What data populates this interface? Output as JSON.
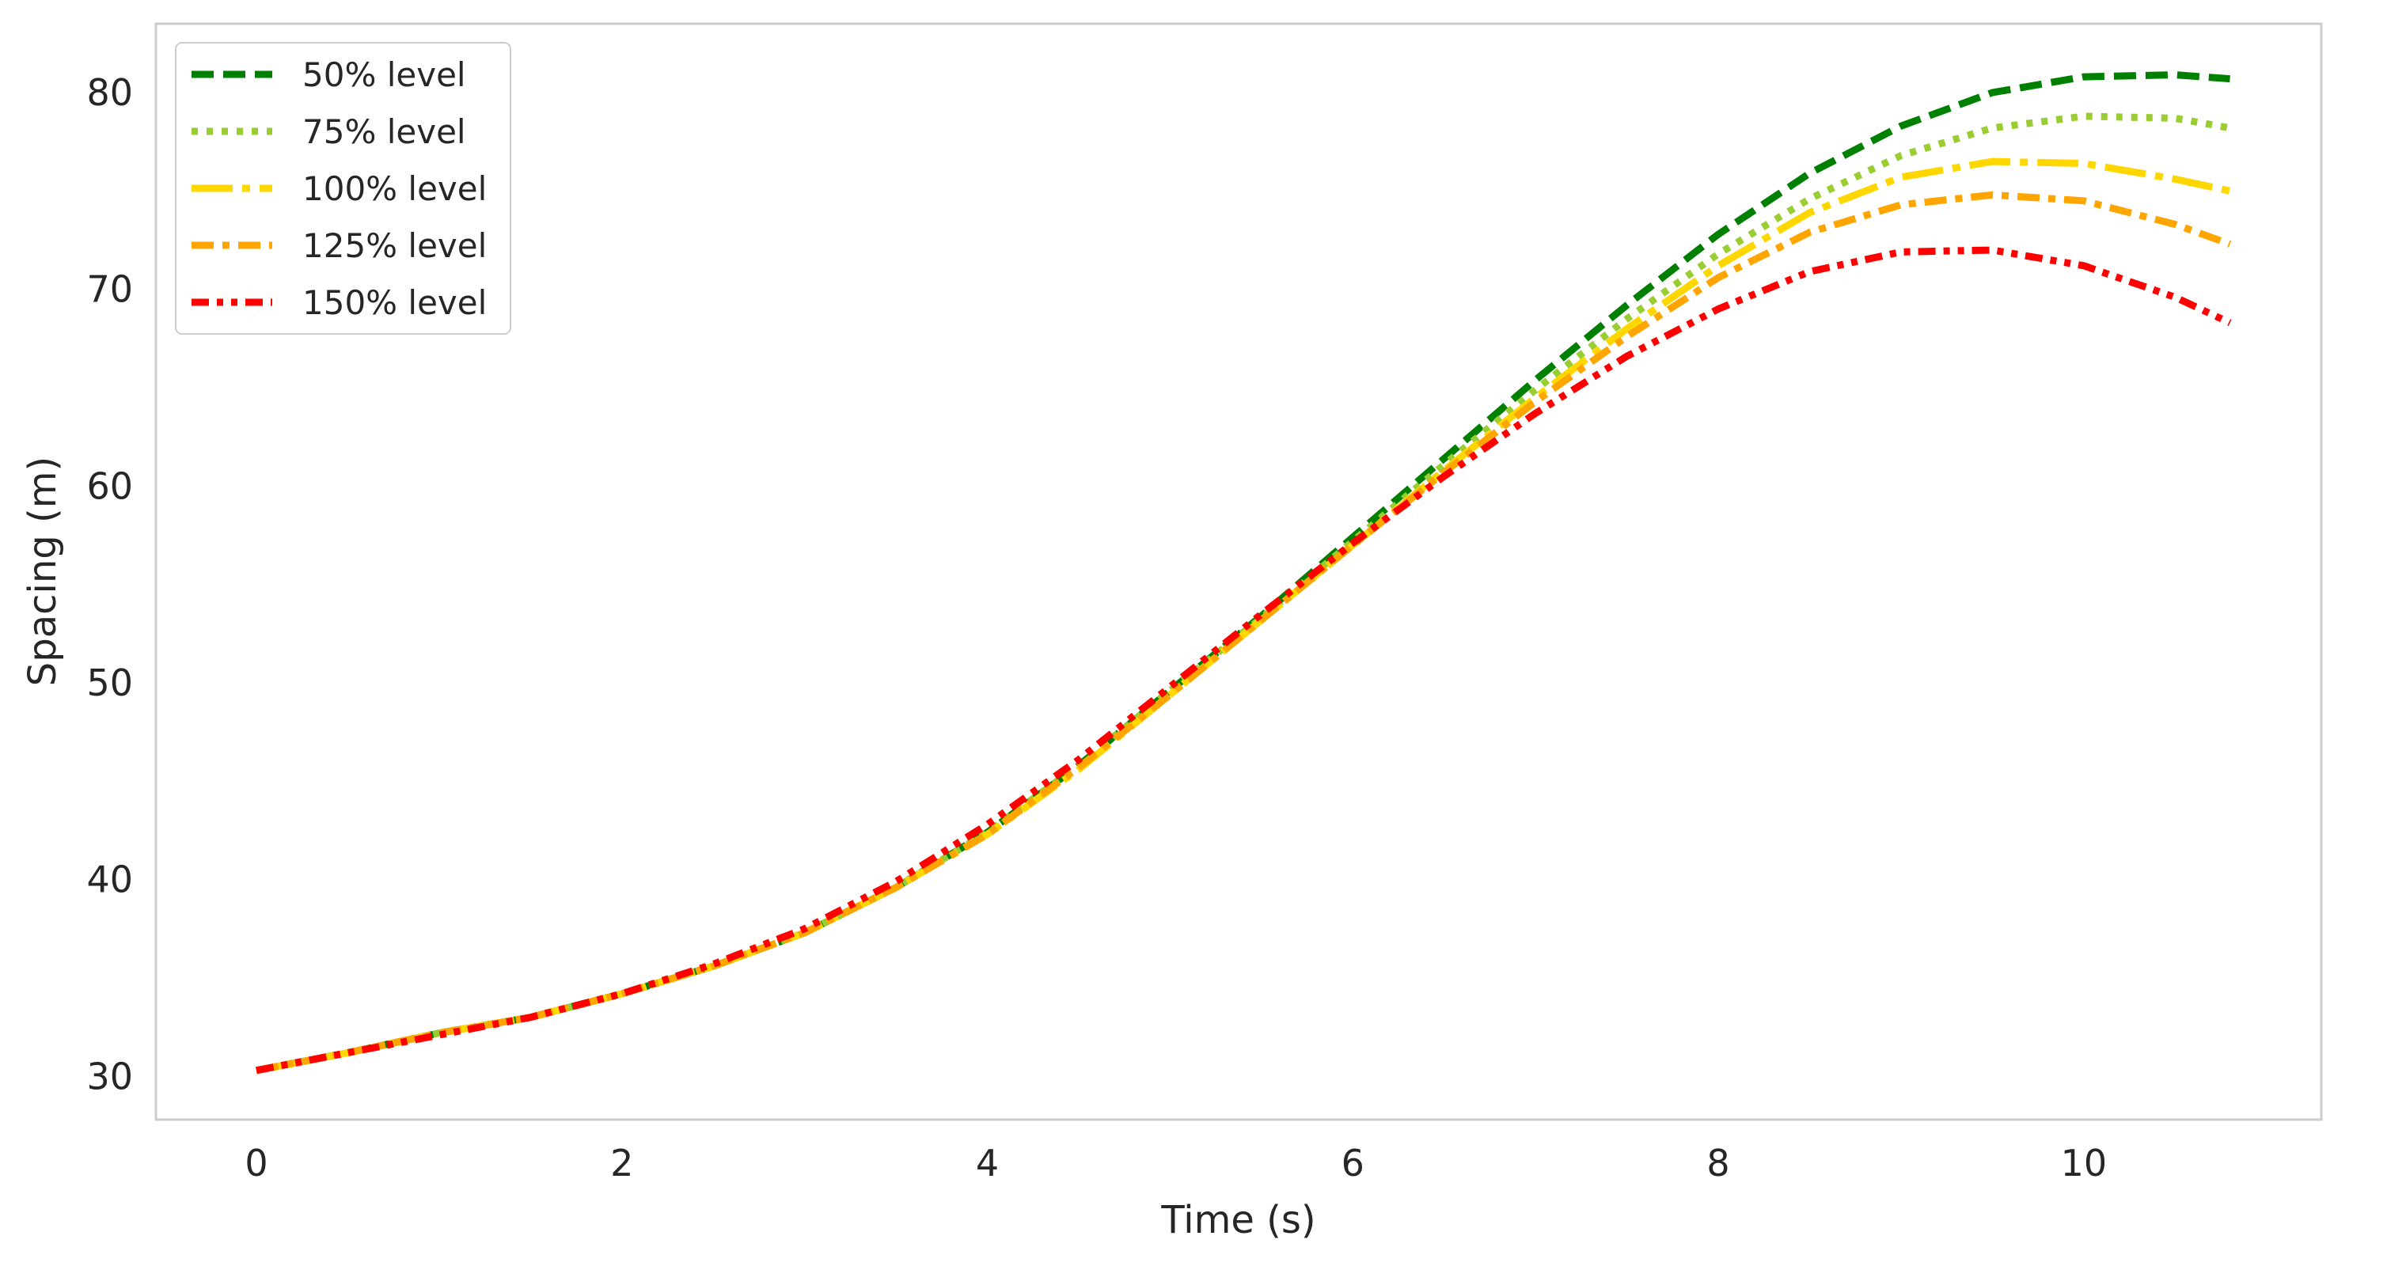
{
  "chart_data": {
    "type": "line",
    "xlabel": "Time (s)",
    "ylabel": "Spacing (m)",
    "xlim": [
      -0.55,
      11.3
    ],
    "ylim": [
      27.8,
      83.5
    ],
    "xticks": [
      0,
      2,
      4,
      6,
      8,
      10
    ],
    "yticks": [
      30,
      40,
      50,
      60,
      70,
      80
    ],
    "grid": false,
    "legend_position": "top-left",
    "x": [
      0,
      0.5,
      1,
      1.5,
      2,
      2.5,
      3,
      3.5,
      4,
      4.5,
      5,
      5.5,
      6,
      6.5,
      7,
      7.5,
      8,
      8.5,
      9,
      9.5,
      10,
      10.5,
      10.8
    ],
    "series": [
      {
        "name": "50% level",
        "color": "#008000",
        "dash": "dashed",
        "values": [
          30.3,
          31.2,
          32.2,
          33.0,
          34.2,
          35.6,
          37.3,
          39.6,
          42.4,
          45.8,
          49.6,
          53.4,
          57.4,
          61.4,
          65.4,
          69.2,
          72.8,
          75.9,
          78.3,
          80.0,
          80.8,
          80.9,
          80.7
        ]
      },
      {
        "name": "75% level",
        "color": "#9acd32",
        "dash": "dotted",
        "values": [
          30.3,
          31.2,
          32.2,
          33.0,
          34.2,
          35.6,
          37.3,
          39.6,
          42.4,
          45.8,
          49.6,
          53.3,
          57.2,
          61.1,
          64.9,
          68.5,
          71.8,
          74.6,
          76.8,
          78.2,
          78.8,
          78.7,
          78.2
        ]
      },
      {
        "name": "100% level",
        "color": "#ffd700",
        "dash": "dashdot-long",
        "values": [
          30.3,
          31.2,
          32.2,
          33.0,
          34.2,
          35.6,
          37.3,
          39.6,
          42.3,
          45.6,
          49.4,
          53.2,
          57.0,
          60.8,
          64.5,
          68.0,
          71.2,
          73.9,
          75.7,
          76.5,
          76.4,
          75.6,
          75.0
        ]
      },
      {
        "name": "125% level",
        "color": "#ffa500",
        "dash": "dashdot",
        "values": [
          30.3,
          31.2,
          32.2,
          33.0,
          34.2,
          35.6,
          37.3,
          39.6,
          42.3,
          45.7,
          49.4,
          53.2,
          57.0,
          60.7,
          64.3,
          67.6,
          70.6,
          72.9,
          74.3,
          74.8,
          74.5,
          73.3,
          72.3
        ]
      },
      {
        "name": "150% level",
        "color": "#ff0000",
        "dash": "dashdotdot",
        "values": [
          30.3,
          31.2,
          32.1,
          33.0,
          34.2,
          35.7,
          37.5,
          39.9,
          42.8,
          46.1,
          49.8,
          53.5,
          57.1,
          60.5,
          63.7,
          66.6,
          69.0,
          70.9,
          71.9,
          72.0,
          71.2,
          69.6,
          68.3
        ]
      }
    ]
  }
}
